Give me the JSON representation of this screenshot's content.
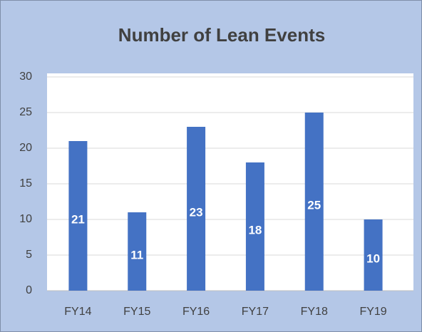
{
  "chart_data": {
    "type": "bar",
    "title": "Number of Lean Events",
    "categories": [
      "FY14",
      "FY15",
      "FY16",
      "FY17",
      "FY18",
      "FY19"
    ],
    "values": [
      21,
      11,
      23,
      18,
      25,
      10
    ],
    "color": "#4472c4",
    "ylim": [
      0,
      30
    ],
    "yticks": [
      0,
      5,
      10,
      15,
      20,
      25,
      30
    ],
    "grid": true
  }
}
